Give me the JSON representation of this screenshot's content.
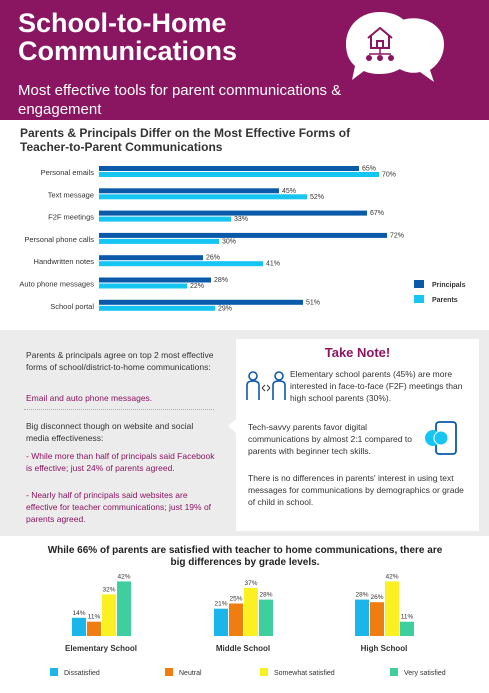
{
  "header": {
    "title": "School-to-Home Communications",
    "subtitle": "Most effective tools for parent communications & engagement"
  },
  "icons": {
    "bubble": "house-chat-bubble-icon",
    "people": "two-people-exchange-icon",
    "phone": "phone-chat-icon"
  },
  "colors": {
    "brand": "#8a1560",
    "principals": "#0b5aa9",
    "parents": "#17c5f3",
    "dissatisfied": "#1ab6ea",
    "neutral": "#f07d12",
    "somewhat_satisfied": "#faf022",
    "very_satisfied": "#3fcf9f"
  },
  "chart_data": [
    {
      "type": "bar",
      "orientation": "horizontal",
      "title": "Parents & Principals Differ on the Most Effective Forms of Teacher-to-Parent Communications",
      "categories": [
        "Personal emails",
        "Text message",
        "F2F meetings",
        "Personal phone calls",
        "Handwritten notes",
        "Auto phone messages",
        "School portal"
      ],
      "series": [
        {
          "name": "Principals",
          "values": [
            65,
            45,
            67,
            72,
            26,
            28,
            51
          ]
        },
        {
          "name": "Parents",
          "values": [
            70,
            52,
            33,
            30,
            41,
            22,
            29
          ]
        }
      ],
      "value_suffix": "%",
      "legend_position": "right",
      "grid": false
    },
    {
      "type": "bar",
      "title": "While 66% of parents are satisfied with teacher to home communications, there are big differences by grade levels.",
      "categories": [
        "Elementary School",
        "Middle School",
        "High School"
      ],
      "series": [
        {
          "name": "Dissatisfied",
          "values": [
            14,
            21,
            28
          ]
        },
        {
          "name": "Neutral",
          "values": [
            11,
            25,
            26
          ]
        },
        {
          "name": "Somewhat satisfied",
          "values": [
            32,
            37,
            42
          ]
        },
        {
          "name": "Very satisfied",
          "values": [
            42,
            28,
            11
          ]
        }
      ],
      "value_suffix": "%",
      "legend_position": "bottom",
      "grid": false
    }
  ],
  "middle": {
    "agree_text": "Parents & principals agree on top 2 most effective forms of school/district-to-home communications:",
    "agree_highlight": "Email and auto phone messages.",
    "disconnect_text": "Big disconnect though on website and social media effectiveness:",
    "point1": "- While more than half of principals said Facebook is effective; just 24% of parents agreed.",
    "point2": "- Nearly half of principals said websites are effective for teacher communications; just 19% of parents agreed."
  },
  "note": {
    "title": "Take Note!",
    "item1": "Elementary school parents (45%) are more interested in face-to-face (F2F) meetings than high school parents (30%).",
    "item2": "Tech-savvy parents favor digital communications by almost 2:1 compared to parents with beginner tech skills.",
    "item3": "There is no differences in parents' interest in using text messages for communications by demographics or grade of child in school."
  }
}
